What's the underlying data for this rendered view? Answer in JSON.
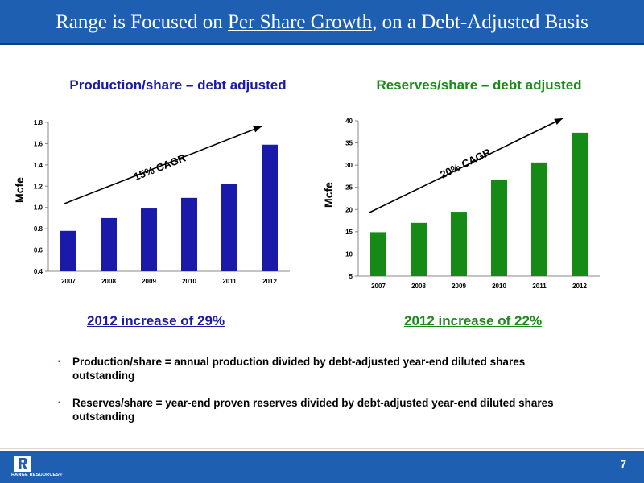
{
  "slide": {
    "title_pre": "Range is Focused on ",
    "title_underlined": "Per Share Growth",
    "title_post": ", on a Debt-Adjusted Basis",
    "page_number": "7",
    "logo_text": "RANGE RESOURCES®",
    "bullets": [
      "Production/share = annual production divided by debt-adjusted year-end diluted shares outstanding",
      "Reserves/share = year-end proven reserves divided by debt-adjusted year-end diluted shares outstanding"
    ],
    "colors": {
      "header": "#1f5fb2",
      "blue_series": "#1a1aaa",
      "green_series": "#168a16"
    }
  },
  "chart_data": [
    {
      "type": "bar",
      "title": "Production/share – debt adjusted",
      "ylabel": "Mcfe",
      "xlabel": "",
      "categories": [
        "2007",
        "2008",
        "2009",
        "2010",
        "2011",
        "2012"
      ],
      "values": [
        0.78,
        0.9,
        0.99,
        1.09,
        1.22,
        1.59
      ],
      "ylim": [
        0.4,
        1.8
      ],
      "yticks": [
        0.4,
        0.6,
        0.8,
        1.0,
        1.2,
        1.4,
        1.6,
        1.8
      ],
      "ytick_labels": [
        "0.4",
        "0.6",
        "0.8",
        "1.0",
        "1.2",
        "1.4",
        "1.6",
        "1.8"
      ],
      "annotation": "15% CAGR",
      "increase_text": "2012 increase of 29%",
      "color": "#1a1aaa",
      "grid": false
    },
    {
      "type": "bar",
      "title": "Reserves/share – debt adjusted",
      "ylabel": "Mcfe",
      "xlabel": "",
      "categories": [
        "2007",
        "2008",
        "2009",
        "2010",
        "2011",
        "2012"
      ],
      "values": [
        14.9,
        17.0,
        19.5,
        26.7,
        30.6,
        37.3
      ],
      "ylim": [
        5,
        40
      ],
      "yticks": [
        5,
        10,
        15,
        20,
        25,
        30,
        35,
        40
      ],
      "ytick_labels": [
        "5",
        "10",
        "15",
        "20",
        "25",
        "30",
        "35",
        "40"
      ],
      "annotation": "20% CAGR",
      "increase_text": "2012 increase of 22%",
      "color": "#168a16",
      "grid": false
    }
  ]
}
